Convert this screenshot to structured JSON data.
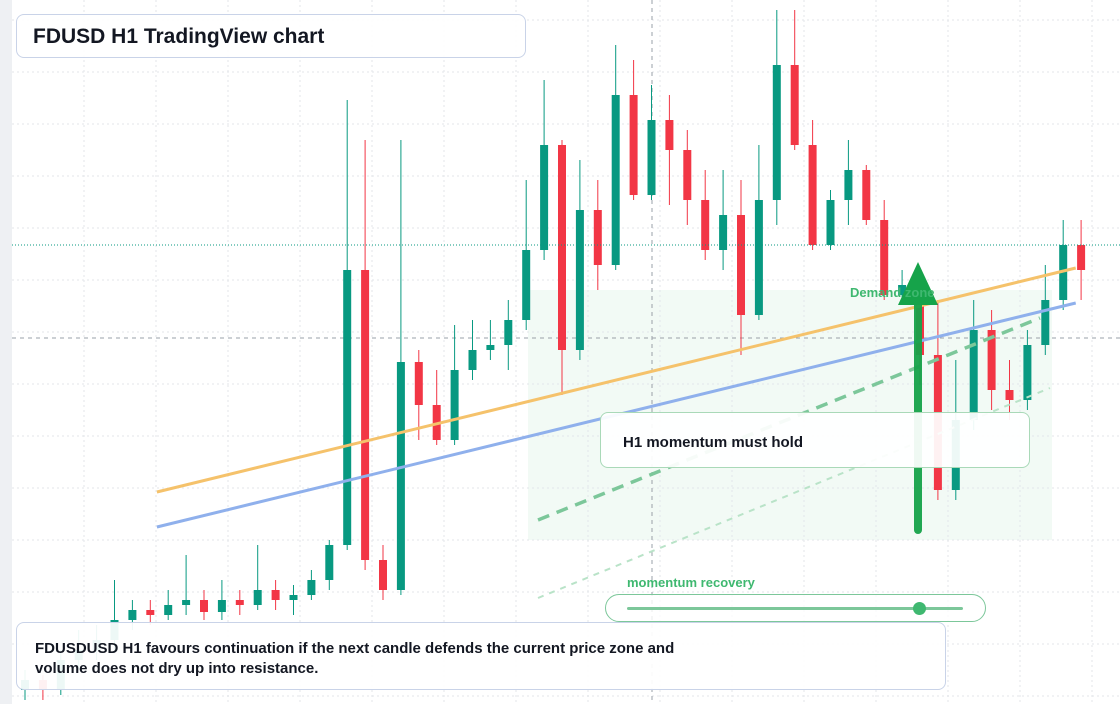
{
  "chart_data": {
    "type": "candlestick",
    "title": "FDUSD H1 TradingView chart",
    "zone_label": "Demand zone",
    "callout": "H1 momentum must hold",
    "slider_label": "momentum recovery",
    "slider_value": 0.87,
    "note": "FDUSDUSD H1 favours continuation if the next candle defends the current price zone and volume does not dry up into resistance.",
    "up_color": "#089981",
    "down_color": "#f23645",
    "ylim": [
      0.99636,
      1.0034
    ],
    "open": [
      0.9965,
      0.9966,
      0.9965,
      0.9968,
      0.9969,
      0.997,
      0.9972,
      0.9973,
      0.99725,
      0.99735,
      0.9974,
      0.99728,
      0.9974,
      0.99735,
      0.9975,
      0.9974,
      0.99745,
      0.9976,
      0.99795,
      1.0007,
      0.9978,
      0.9975,
      0.99978,
      0.99935,
      0.999,
      0.9997,
      0.9999,
      0.99995,
      1.0002,
      1.0009,
      1.00195,
      0.9999,
      1.0013,
      1.00075,
      1.00245,
      1.00145,
      1.0022,
      1.0019,
      1.0014,
      1.0009,
      1.00125,
      1.00025,
      1.0014,
      1.00275,
      1.00195,
      1.00095,
      1.0014,
      1.0017,
      1.0012,
      1.00045,
      1.00055,
      0.99985,
      0.9985,
      0.9992,
      1.0001,
      0.9995,
      0.9994,
      0.99995,
      1.0004,
      1.00095
    ],
    "high": [
      0.9967,
      0.99665,
      0.9969,
      0.9971,
      0.99715,
      0.9976,
      0.9974,
      0.9974,
      0.9975,
      0.99785,
      0.9975,
      0.9976,
      0.9975,
      0.99795,
      0.9976,
      0.99755,
      0.9977,
      0.998,
      1.0024,
      1.002,
      0.99795,
      1.002,
      0.9999,
      0.9997,
      1.00015,
      1.0002,
      1.0002,
      1.0004,
      1.0016,
      1.0026,
      1.002,
      1.0018,
      1.0016,
      1.00295,
      1.0028,
      1.00255,
      1.00245,
      1.0021,
      1.0017,
      1.0017,
      1.0016,
      1.00195,
      1.0033,
      1.0033,
      1.0022,
      1.0015,
      1.002,
      1.00175,
      1.0014,
      1.0007,
      1.0007,
      1.0004,
      0.9998,
      1.0004,
      1.0003,
      0.9998,
      1.0001,
      1.00075,
      1.0012,
      1.0012
    ],
    "low": [
      0.9964,
      0.9964,
      0.99645,
      0.9967,
      0.9968,
      0.9969,
      0.9971,
      0.99715,
      0.9972,
      0.99725,
      0.9972,
      0.9972,
      0.99725,
      0.9973,
      0.9973,
      0.99725,
      0.9974,
      0.9975,
      0.9979,
      0.9977,
      0.9974,
      0.99745,
      0.999,
      0.99895,
      0.99895,
      0.9996,
      0.9998,
      0.9997,
      1.0001,
      1.0008,
      0.99945,
      0.9998,
      1.0005,
      1.0007,
      1.0014,
      1.0014,
      1.00135,
      1.00115,
      1.0008,
      1.0007,
      0.99985,
      1.0002,
      1.00115,
      1.0019,
      1.0009,
      1.0009,
      1.00115,
      1.00115,
      1.0004,
      1.0004,
      0.99955,
      0.9984,
      0.9984,
      0.9991,
      0.9993,
      0.9992,
      0.9993,
      0.99985,
      1.0003,
      1.0004
    ],
    "close": [
      0.9966,
      0.9965,
      0.9968,
      0.9969,
      0.997,
      0.9972,
      0.9973,
      0.99725,
      0.99735,
      0.9974,
      0.99728,
      0.9974,
      0.99735,
      0.9975,
      0.9974,
      0.99745,
      0.9976,
      0.99795,
      1.0007,
      0.9978,
      0.9975,
      0.99978,
      0.99935,
      0.999,
      0.9997,
      0.9999,
      0.99995,
      1.0002,
      1.0009,
      1.00195,
      0.9999,
      1.0013,
      1.00075,
      1.00245,
      1.00145,
      1.0022,
      1.0019,
      1.0014,
      1.0009,
      1.00125,
      1.00025,
      1.0014,
      1.00275,
      1.00195,
      1.00095,
      1.0014,
      1.0017,
      1.0012,
      1.00045,
      1.00055,
      0.99985,
      0.9985,
      0.9992,
      1.0001,
      0.9995,
      0.9994,
      0.99995,
      1.0004,
      1.00095,
      1.0007
    ],
    "trendlines": [
      {
        "color": "#f5c26b",
        "x": [
          7.37,
          58.7
        ],
        "y": [
          0.99848,
          1.00072
        ],
        "dash": false
      },
      {
        "color": "#8fb0ec",
        "x": [
          7.37,
          58.7
        ],
        "y": [
          0.99813,
          1.00037
        ],
        "dash": false
      },
      {
        "color": "#7cc79a",
        "x": [
          28.66,
          56.7
        ],
        "y": [
          0.9982,
          1.00022
        ],
        "dash": true
      },
      {
        "color": "#b9e3c8",
        "x": [
          28.66,
          57.26
        ],
        "y": [
          0.99742,
          0.99952
        ],
        "dash": true
      }
    ]
  }
}
